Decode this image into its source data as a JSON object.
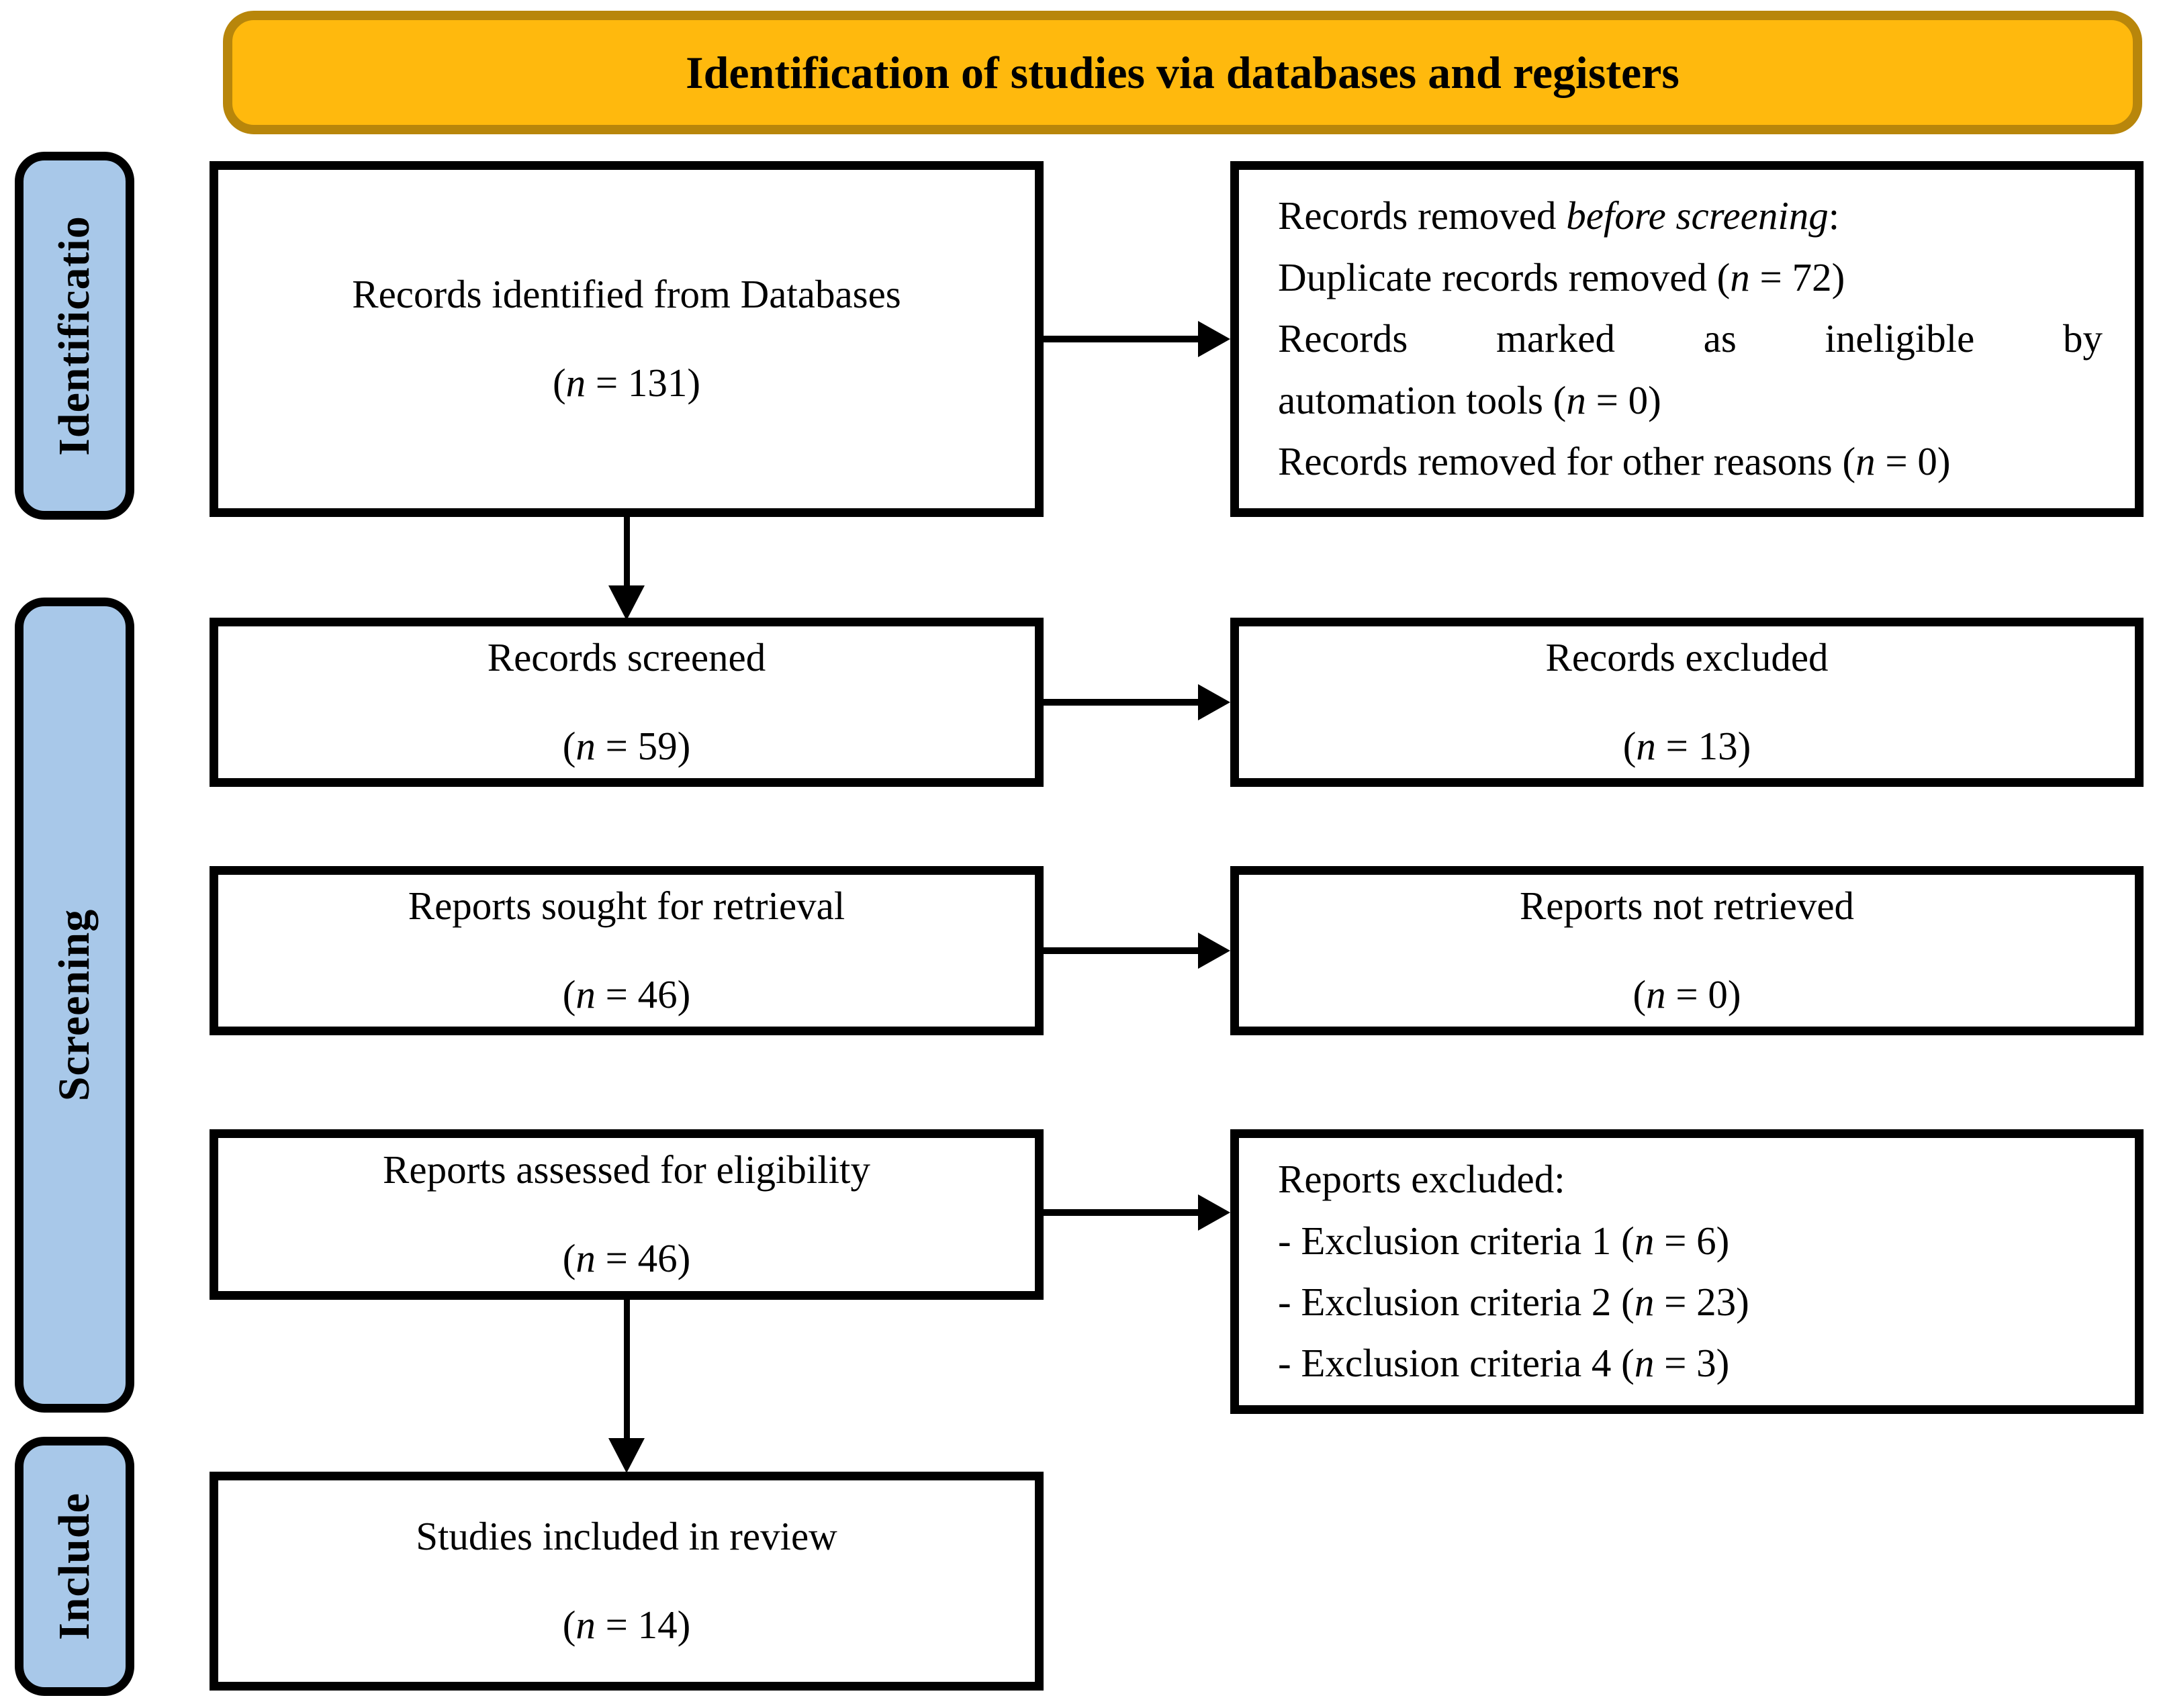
{
  "colors": {
    "banner_bg": "#FFB90D",
    "banner_border": "#B8860B",
    "sidebar_bg": "#A8C8E9",
    "box_border": "#000000",
    "arrow": "#000000",
    "text": "#000000"
  },
  "banner": {
    "title": "Identification of studies via databases and registers"
  },
  "sidebar": [
    {
      "label": "Identificatio"
    },
    {
      "label": "Screening"
    },
    {
      "label": "Include"
    }
  ],
  "boxes": {
    "records_identified": {
      "lines": [
        [
          {
            "t": "Records identified from Databases"
          }
        ],
        [
          {
            "t": "("
          },
          {
            "t": "n",
            "i": true
          },
          {
            "t": " = 131)"
          }
        ]
      ]
    },
    "records_removed": {
      "lines": [
        [
          {
            "t": "Records removed "
          },
          {
            "t": "before screening",
            "i": true
          },
          {
            "t": ":"
          }
        ],
        [
          {
            "t": "Duplicate records removed ("
          },
          {
            "t": "n",
            "i": true
          },
          {
            "t": " = 72)"
          }
        ],
        [
          {
            "t": "Records marked as ineligible by"
          }
        ],
        [
          {
            "t": "automation tools ("
          },
          {
            "t": "n",
            "i": true
          },
          {
            "t": " = 0)"
          }
        ],
        [
          {
            "t": "Records removed for other reasons ("
          },
          {
            "t": "n",
            "i": true
          },
          {
            "t": " = 0)"
          }
        ]
      ]
    },
    "records_screened": {
      "lines": [
        [
          {
            "t": "Records screened"
          }
        ],
        [
          {
            "t": "("
          },
          {
            "t": "n",
            "i": true
          },
          {
            "t": " = 59)"
          }
        ]
      ]
    },
    "records_excluded": {
      "lines": [
        [
          {
            "t": "Records excluded"
          }
        ],
        [
          {
            "t": "("
          },
          {
            "t": "n",
            "i": true
          },
          {
            "t": " = 13)"
          }
        ]
      ]
    },
    "reports_sought": {
      "lines": [
        [
          {
            "t": "Reports sought for retrieval"
          }
        ],
        [
          {
            "t": "("
          },
          {
            "t": "n",
            "i": true
          },
          {
            "t": " = 46)"
          }
        ]
      ]
    },
    "reports_not_retrieved": {
      "lines": [
        [
          {
            "t": "Reports not retrieved"
          }
        ],
        [
          {
            "t": "("
          },
          {
            "t": "n",
            "i": true
          },
          {
            "t": " = 0)"
          }
        ]
      ]
    },
    "reports_assessed": {
      "lines": [
        [
          {
            "t": "Reports assessed for eligibility"
          }
        ],
        [
          {
            "t": "("
          },
          {
            "t": "n",
            "i": true
          },
          {
            "t": " = 46)"
          }
        ]
      ]
    },
    "reports_excluded": {
      "lines": [
        [
          {
            "t": "Reports excluded:"
          }
        ],
        [
          {
            "t": "- Exclusion criteria 1 ("
          },
          {
            "t": "n",
            "i": true
          },
          {
            "t": " = 6)"
          }
        ],
        [
          {
            "t": "- Exclusion criteria 2 ("
          },
          {
            "t": "n",
            "i": true
          },
          {
            "t": " = 23)"
          }
        ],
        [
          {
            "t": "- Exclusion criteria 4 ("
          },
          {
            "t": "n",
            "i": true
          },
          {
            "t": " = 3)"
          }
        ]
      ]
    },
    "studies_included": {
      "lines": [
        [
          {
            "t": "Studies included in review"
          }
        ],
        [
          {
            "t": "("
          },
          {
            "t": "n",
            "i": true
          },
          {
            "t": " = 14)"
          }
        ]
      ]
    }
  }
}
